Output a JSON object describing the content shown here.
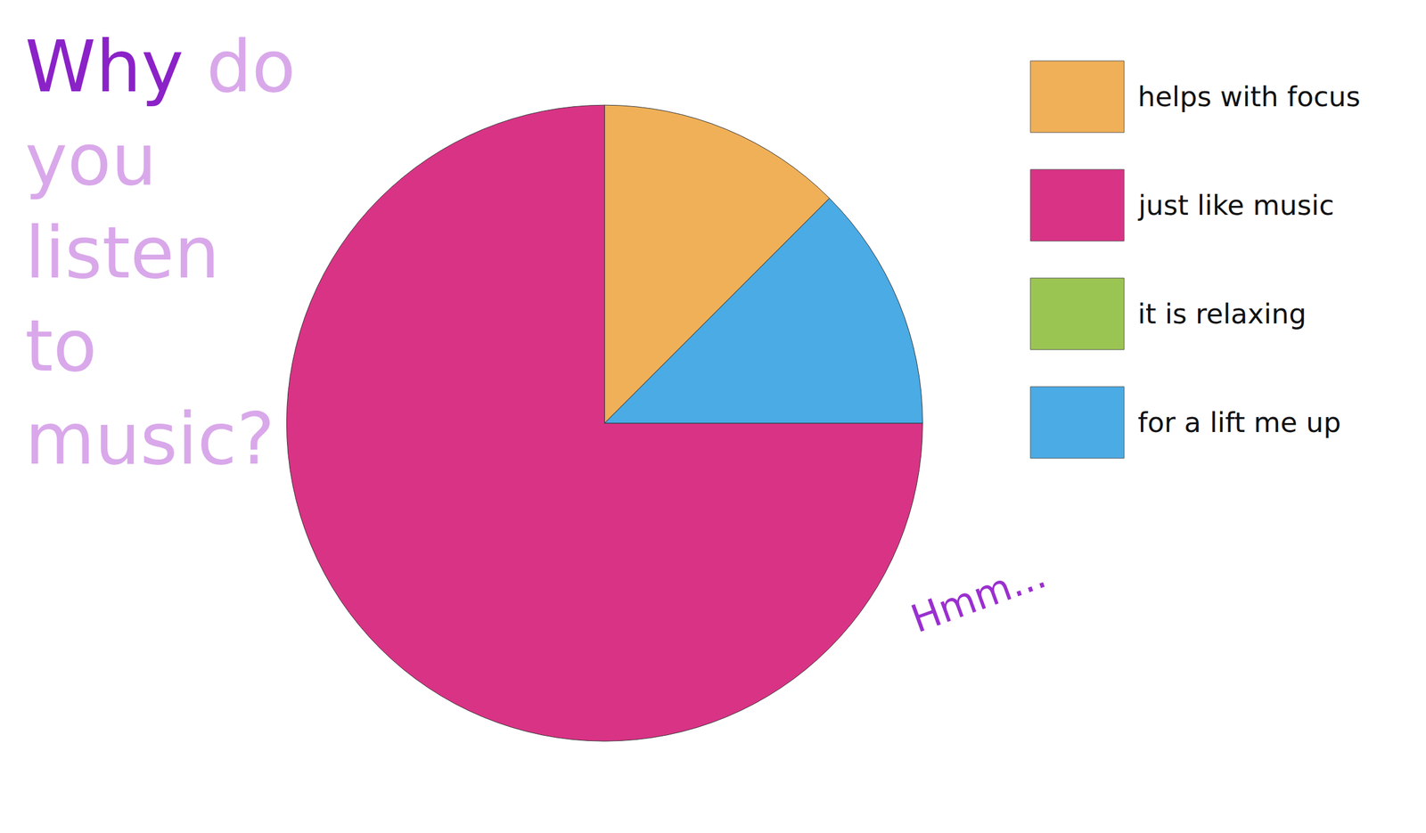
{
  "chart_data": {
    "type": "pie",
    "title": "Why do you listen to music?",
    "categories": [
      "helps with focus",
      "just like music",
      "it is relaxing",
      "for a lift me up"
    ],
    "values": [
      12.5,
      75,
      0,
      12.5
    ],
    "colors": [
      "#F0B057",
      "#D93386",
      "#9BC553",
      "#4AABE5"
    ],
    "legend": "right",
    "data_labels": false,
    "annotations": [
      "Hmm..."
    ]
  }
}
